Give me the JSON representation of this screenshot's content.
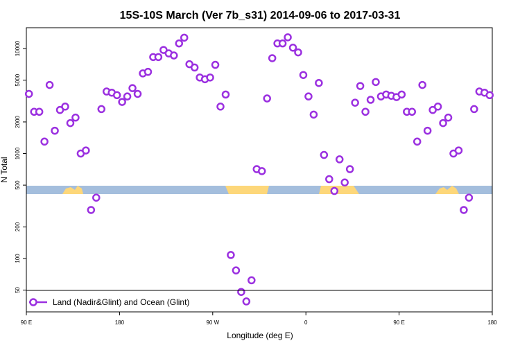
{
  "chart_data": {
    "type": "scatter",
    "title": "15S-10S March (Ver 7b_s31)   2014-09-06 to 2017-03-31",
    "x_label": "Longitude (deg E)",
    "y_label": "N Total",
    "log_y": true,
    "xlim": [
      90,
      540
    ],
    "ylim": [
      31,
      15800
    ],
    "xticks": [
      {
        "value": 90,
        "label": "90 E"
      },
      {
        "value": 180,
        "label": "180"
      },
      {
        "value": 270,
        "label": "90 W"
      },
      {
        "value": 360,
        "label": "0"
      },
      {
        "value": 450,
        "label": "90 E"
      },
      {
        "value": 540,
        "label": "180"
      }
    ],
    "yticks": [
      50,
      100,
      200,
      500,
      1000,
      2000,
      5000,
      10000
    ],
    "legend": "bottom-left",
    "series": [
      {
        "name": "Land (Nadir&Glint) and Ocean (Glint)",
        "color": "#9b30e0",
        "x": [
          92.5,
          97.5,
          102.5,
          107.5,
          112.5,
          117.5,
          122.5,
          127.5,
          132.5,
          137.5,
          142.5,
          147.5,
          152.5,
          157.5,
          162.5,
          167.5,
          172.5,
          177.5,
          182.5,
          187.5,
          192.5,
          197.5,
          202.5,
          207.5,
          212.5,
          217.5,
          222.5,
          227.5,
          232.5,
          237.5,
          242.5,
          247.5,
          252.5,
          257.5,
          262.5,
          267.5,
          272.5,
          277.5,
          282.5,
          287.5,
          292.5,
          297.5,
          302.5,
          307.5,
          312.5,
          317.5,
          322.5,
          327.5,
          332.5,
          337.5,
          342.5,
          347.5,
          352.5,
          357.5,
          362.5,
          367.5,
          372.5,
          377.5,
          382.5,
          387.5,
          392.5,
          397.5,
          402.5,
          407.5,
          412.5,
          417.5,
          422.5,
          427.5,
          432.5,
          437.5,
          442.5,
          447.5,
          452.5,
          457.5,
          462.5,
          467.5,
          472.5,
          477.5,
          482.5,
          487.5,
          492.5,
          497.5,
          502.5,
          507.5,
          512.5,
          517.5,
          522.5,
          527.5,
          532.5,
          537.5
        ],
        "values": [
          3700,
          2500,
          2500,
          1300,
          4500,
          1650,
          2600,
          2800,
          1950,
          2200,
          1000,
          1070,
          290,
          380,
          2650,
          3900,
          3800,
          3600,
          3100,
          3500,
          4200,
          3700,
          5800,
          6000,
          8300,
          8300,
          9700,
          9000,
          8600,
          11200,
          12700,
          7100,
          6600,
          5300,
          5100,
          5300,
          7000,
          2800,
          3650,
          108,
          77,
          48,
          39,
          62,
          710,
          680,
          3350,
          8100,
          11200,
          11200,
          12800,
          10200,
          9200,
          5600,
          3500,
          2350,
          4700,
          970,
          570,
          440,
          880,
          530,
          710,
          3050,
          4400,
          2500,
          3250,
          4800,
          3500,
          3650,
          3550,
          3450,
          3650,
          2500,
          2500,
          1300,
          4500,
          1650,
          2600,
          2800,
          1950,
          2200,
          1000,
          1070,
          290,
          380,
          2650,
          3900,
          3800,
          3600
        ]
      }
    ]
  }
}
